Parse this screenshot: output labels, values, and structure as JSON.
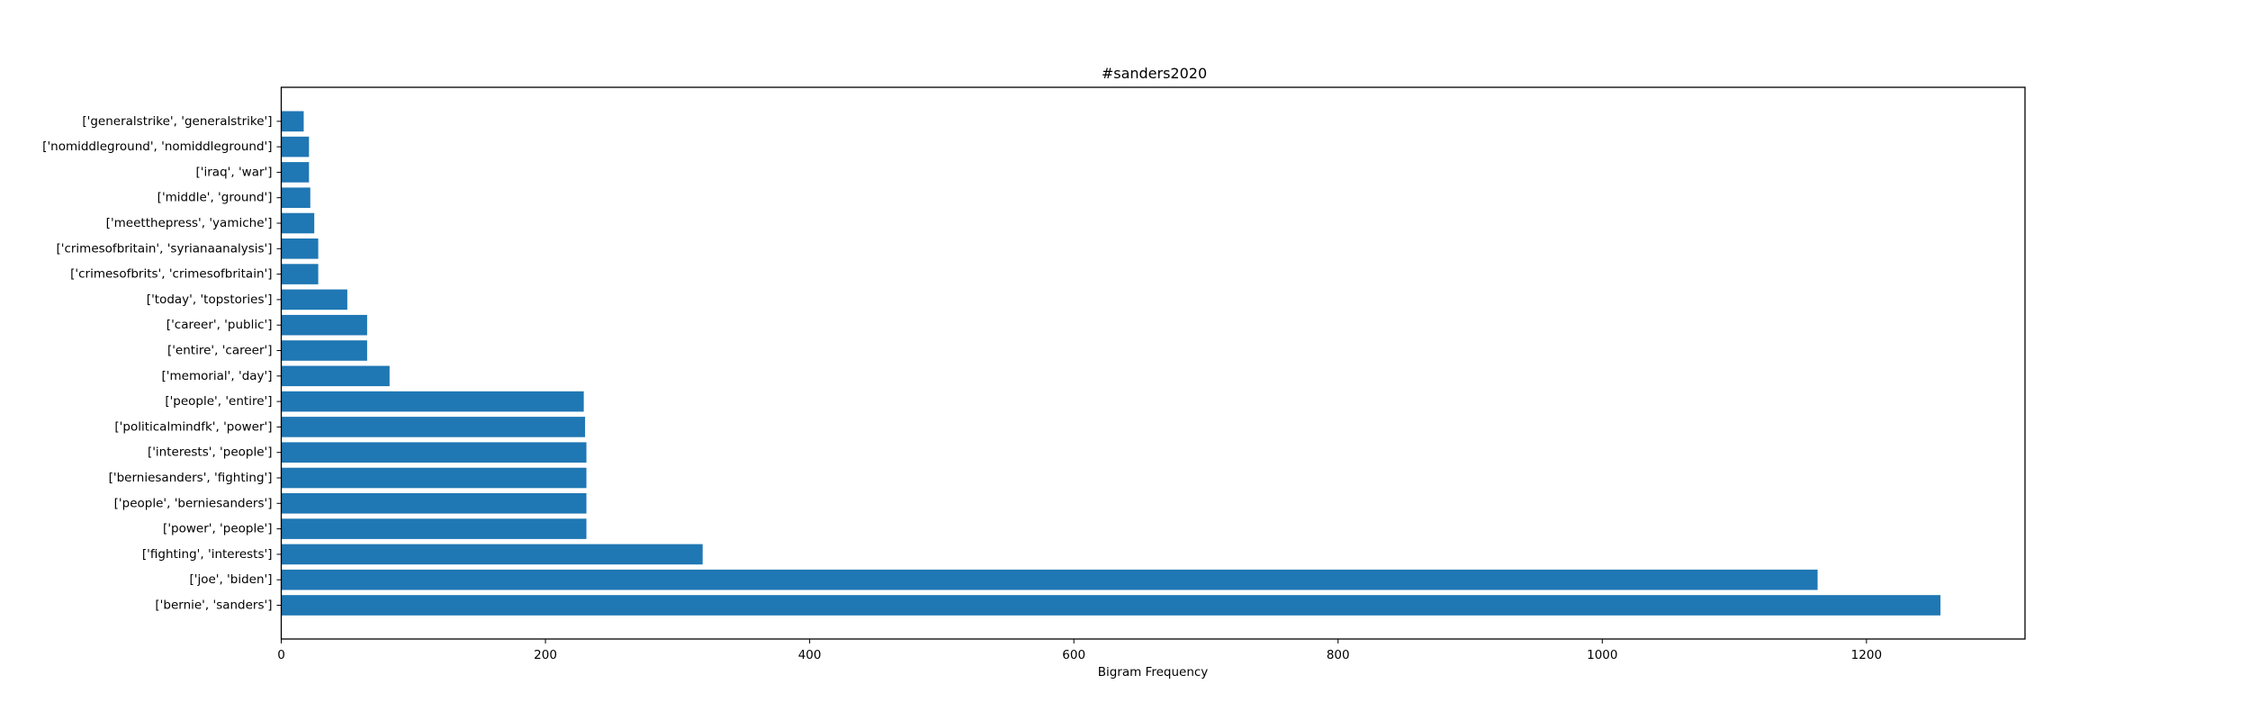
{
  "chart_data": {
    "type": "bar",
    "orientation": "horizontal",
    "title": "#sanders2020",
    "xlabel": "Bigram Frequency",
    "ylabel": "",
    "xlim": [
      0,
      1320
    ],
    "xticks": [
      0,
      200,
      400,
      600,
      800,
      1000,
      1200
    ],
    "grid": false,
    "bar_color": "#1f77b4",
    "categories": [
      "['bernie', 'sanders']",
      "['joe', 'biden']",
      "['fighting', 'interests']",
      "['power', 'people']",
      "['people', 'berniesanders']",
      "['berniesanders', 'fighting']",
      "['interests', 'people']",
      "['politicalmindfk', 'power']",
      "['people', 'entire']",
      "['memorial', 'day']",
      "['entire', 'career']",
      "['career', 'public']",
      "['today', 'topstories']",
      "['crimesofbrits', 'crimesofbritain']",
      "['crimesofbritain', 'syrianaanalysis']",
      "['meetthepress', 'yamiche']",
      "['middle', 'ground']",
      "['iraq', 'war']",
      "['nomiddleground', 'nomiddleground']",
      "['generalstrike', 'generalstrike']"
    ],
    "values": [
      1256,
      1163,
      319,
      231,
      231,
      231,
      231,
      230,
      229,
      82,
      65,
      65,
      50,
      28,
      28,
      25,
      22,
      21,
      21,
      17
    ]
  }
}
